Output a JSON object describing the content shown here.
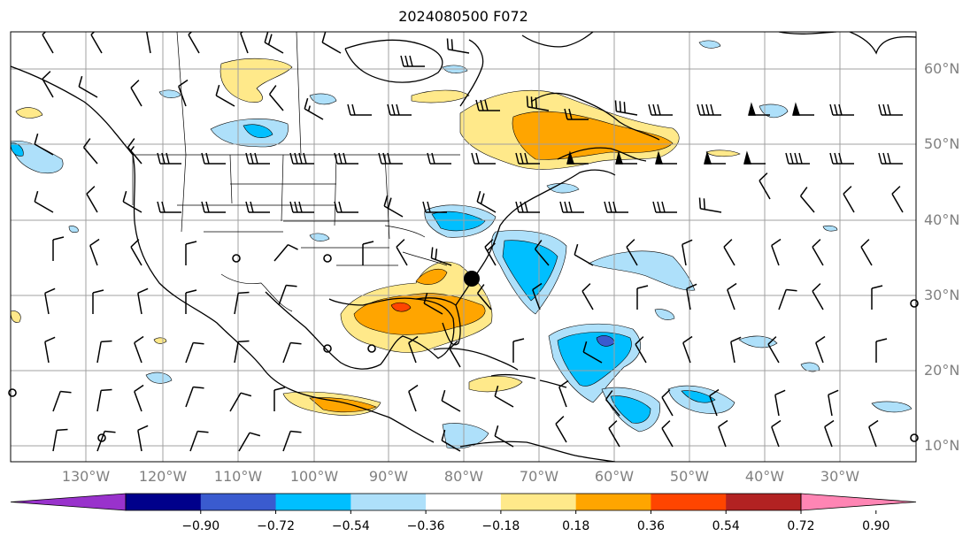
{
  "title": "2024080500 F072",
  "lat_labels": [
    "60°N",
    "50°N",
    "40°N",
    "30°N",
    "20°N",
    "10°N"
  ],
  "lon_labels": [
    "130°W",
    "120°W",
    "110°W",
    "100°W",
    "90°W",
    "80°W",
    "70°W",
    "60°W",
    "50°W",
    "40°W",
    "30°W"
  ],
  "colorbar": {
    "ticks": [
      "−0.90",
      "−0.72",
      "−0.54",
      "−0.36",
      "−0.18",
      "0.18",
      "0.36",
      "0.54",
      "0.72",
      "0.90"
    ],
    "colors": [
      "#9932cc",
      "#00008b",
      "#3a5bcf",
      "#00bfff",
      "#aee0fa",
      "#ffffff",
      "#ffe98a",
      "#ffa500",
      "#ff4500",
      "#b22222",
      "#ff85b4"
    ]
  },
  "colors": {
    "land_outline": "#000000",
    "grid": "#a0a0a0",
    "tick_label": "#808080"
  }
}
